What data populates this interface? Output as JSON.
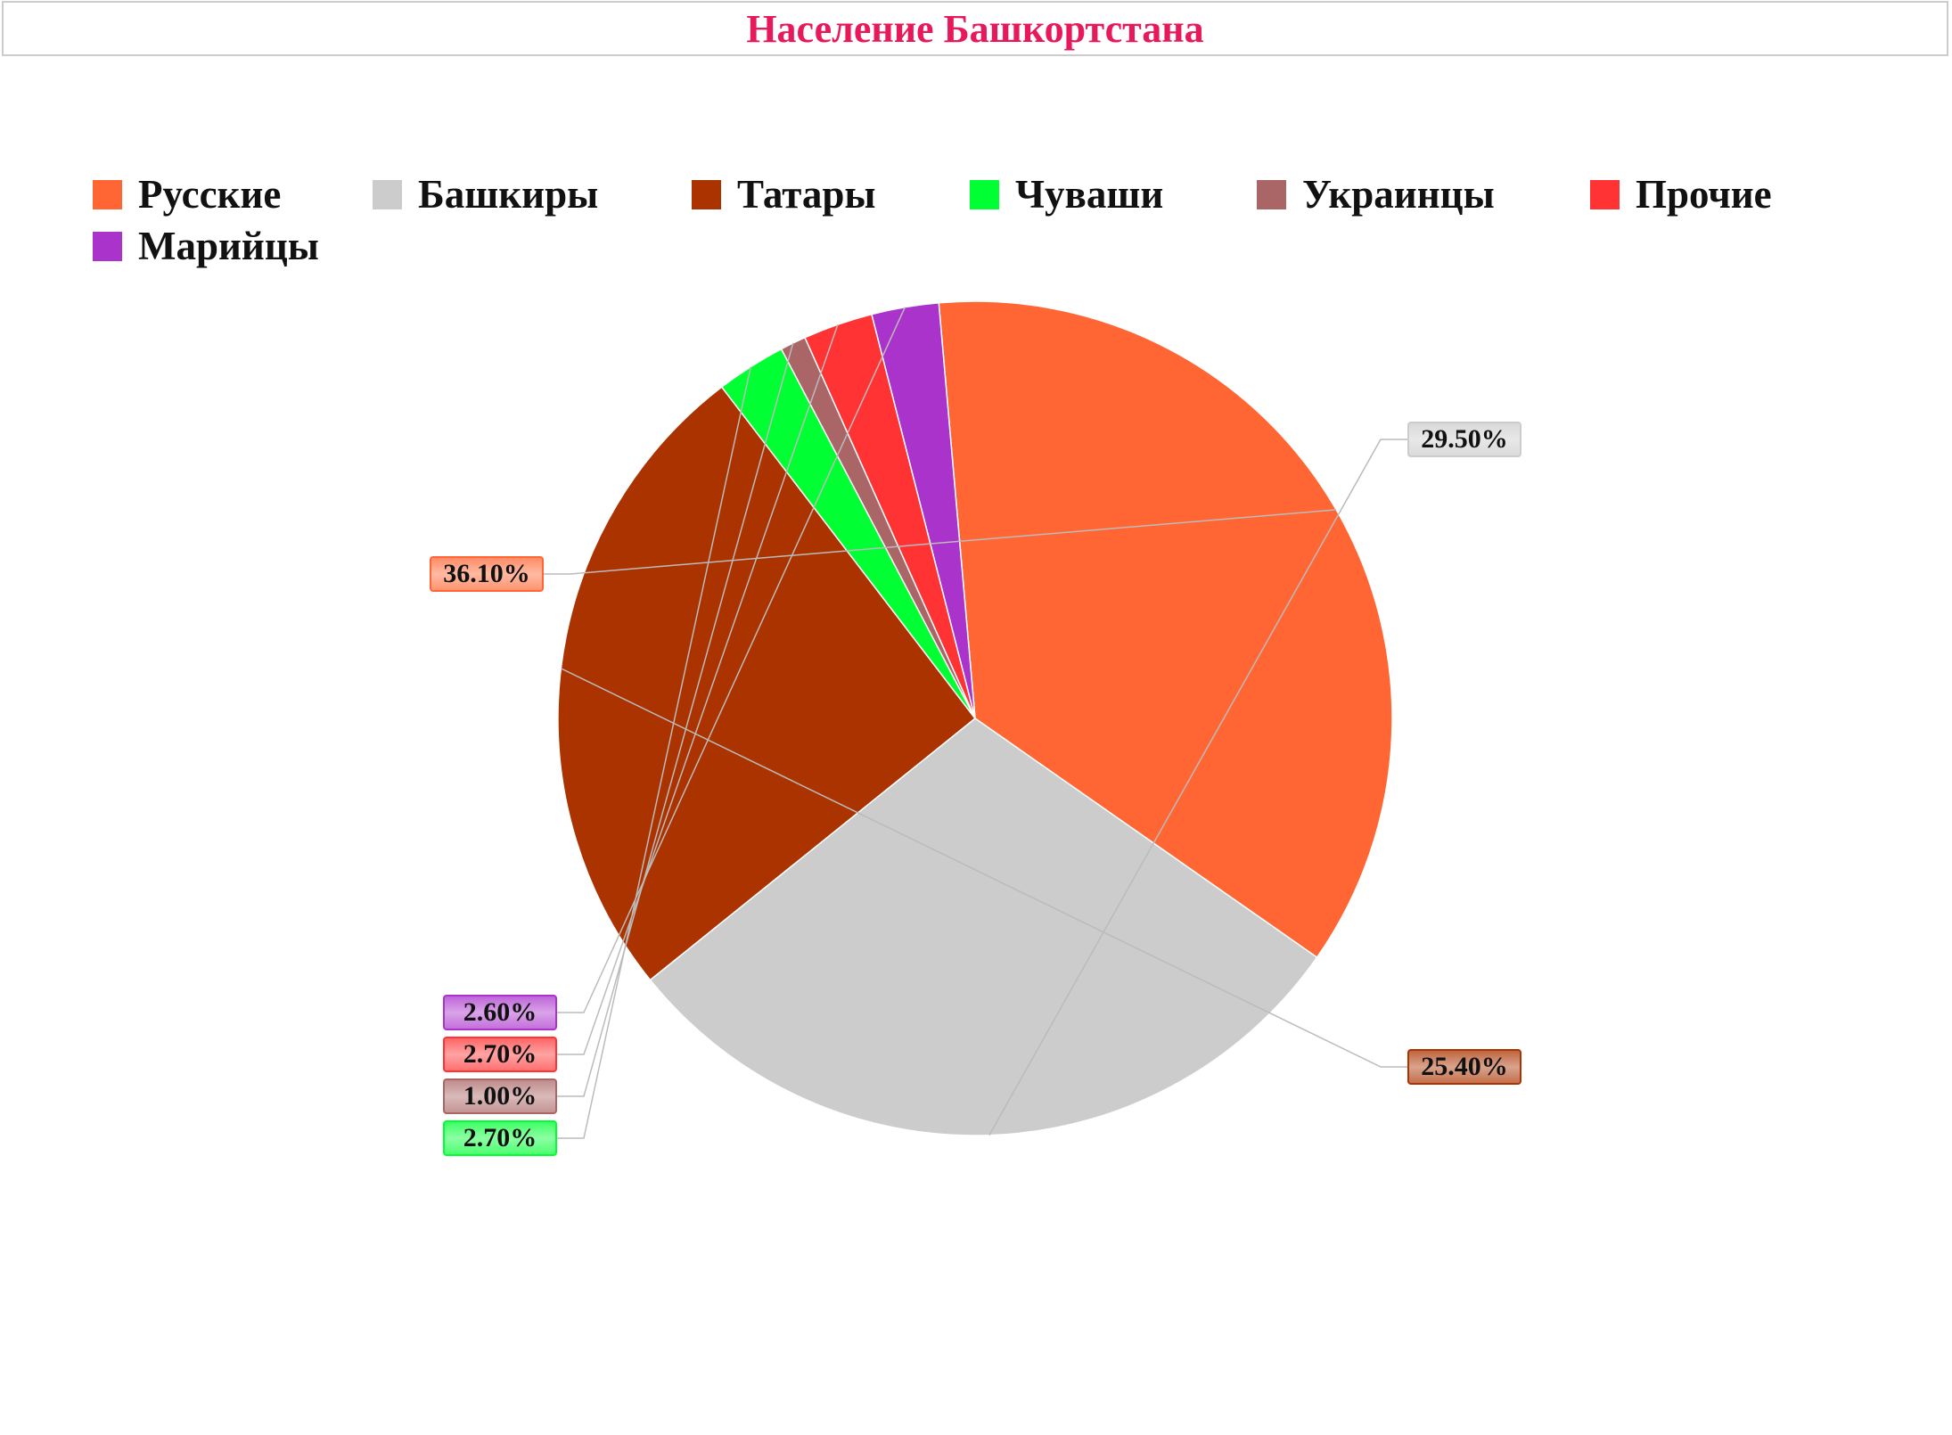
{
  "chart_data": {
    "type": "pie",
    "title": "Население Башкортстана",
    "legend_position": "top",
    "slices": [
      {
        "name": "Русские",
        "value": 36.1,
        "label": "36.10%",
        "color": "#ff6633"
      },
      {
        "name": "Башкиры",
        "value": 29.5,
        "label": "29.50%",
        "color": "#cccccc"
      },
      {
        "name": "Татары",
        "value": 25.4,
        "label": "25.40%",
        "color": "#aa3300"
      },
      {
        "name": "Чуваши",
        "value": 2.7,
        "label": "2.70%",
        "color": "#00ff33"
      },
      {
        "name": "Украинцы",
        "value": 1.0,
        "label": "1.00%",
        "color": "#aa6666"
      },
      {
        "name": "Прочие",
        "value": 2.7,
        "label": "2.70%",
        "color": "#ff3333"
      },
      {
        "name": "Марийцы",
        "value": 2.6,
        "label": "2.60%",
        "color": "#aa33cc"
      }
    ]
  }
}
